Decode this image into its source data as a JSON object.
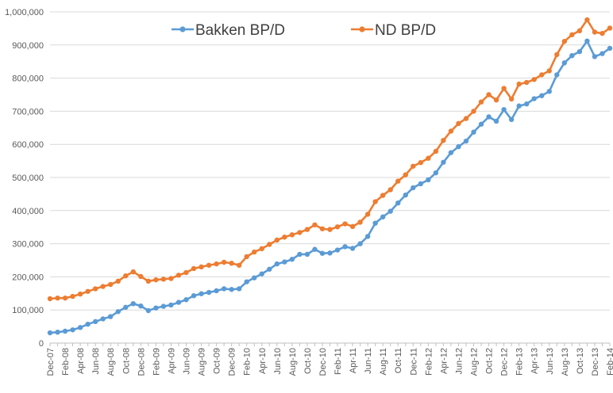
{
  "chart_data": {
    "type": "line",
    "title": "",
    "xlabel": "",
    "ylabel": "",
    "ylim": [
      0,
      1000000
    ],
    "y_ticks": [
      0,
      100000,
      200000,
      300000,
      400000,
      500000,
      600000,
      700000,
      800000,
      900000,
      1000000
    ],
    "y_tick_labels": [
      "0",
      "100,000",
      "200,000",
      "300,000",
      "400,000",
      "500,000",
      "600,000",
      "700,000",
      "800,000",
      "900,000",
      "1,000,000"
    ],
    "grid": true,
    "legend_position": "top",
    "x_tick_labels": [
      "Dec-07",
      "Feb-08",
      "Apr-08",
      "Jun-08",
      "Aug-08",
      "Oct-08",
      "Dec-08",
      "Feb-09",
      "Apr-09",
      "Jun-09",
      "Aug-09",
      "Oct-09",
      "Dec-09",
      "Feb-10",
      "Apr-10",
      "Jun-10",
      "Aug-10",
      "Oct-10",
      "Dec-10",
      "Feb-11",
      "Apr-11",
      "Jun-11",
      "Aug-11",
      "Oct-11",
      "Dec-11",
      "Feb-12",
      "Apr-12",
      "Jun-12",
      "Aug-12",
      "Oct-12",
      "Dec-12",
      "Feb-13",
      "Apr-13",
      "Jun-13",
      "Aug-13",
      "Oct-13",
      "Dec-13",
      "Feb-14"
    ],
    "x": [
      "Dec-07",
      "Jan-08",
      "Feb-08",
      "Mar-08",
      "Apr-08",
      "May-08",
      "Jun-08",
      "Jul-08",
      "Aug-08",
      "Sep-08",
      "Oct-08",
      "Nov-08",
      "Dec-08",
      "Jan-09",
      "Feb-09",
      "Mar-09",
      "Apr-09",
      "May-09",
      "Jun-09",
      "Jul-09",
      "Aug-09",
      "Sep-09",
      "Oct-09",
      "Nov-09",
      "Dec-09",
      "Jan-10",
      "Feb-10",
      "Mar-10",
      "Apr-10",
      "May-10",
      "Jun-10",
      "Jul-10",
      "Aug-10",
      "Sep-10",
      "Oct-10",
      "Nov-10",
      "Dec-10",
      "Jan-11",
      "Feb-11",
      "Mar-11",
      "Apr-11",
      "May-11",
      "Jun-11",
      "Jul-11",
      "Aug-11",
      "Sep-11",
      "Oct-11",
      "Nov-11",
      "Dec-11",
      "Jan-12",
      "Feb-12",
      "Mar-12",
      "Apr-12",
      "May-12",
      "Jun-12",
      "Jul-12",
      "Aug-12",
      "Sep-12",
      "Oct-12",
      "Nov-12",
      "Dec-12",
      "Jan-13",
      "Feb-13",
      "Mar-13",
      "Apr-13",
      "May-13",
      "Jun-13",
      "Jul-13",
      "Aug-13",
      "Sep-13",
      "Oct-13",
      "Nov-13",
      "Dec-13",
      "Jan-14",
      "Feb-14"
    ],
    "series": [
      {
        "name": "Bakken BP/D",
        "color": "#5B9BD5",
        "values": [
          31000,
          33000,
          36000,
          40000,
          47000,
          57000,
          65000,
          73000,
          80000,
          95000,
          108000,
          119000,
          112000,
          98000,
          106000,
          111000,
          115000,
          123000,
          131000,
          143000,
          149000,
          153000,
          158000,
          164000,
          162000,
          164000,
          185000,
          197000,
          209000,
          223000,
          239000,
          245000,
          253000,
          268000,
          268000,
          283000,
          271000,
          272000,
          281000,
          291000,
          286000,
          300000,
          322000,
          362000,
          381000,
          398000,
          423000,
          447000,
          469000,
          481000,
          493000,
          514000,
          546000,
          575000,
          593000,
          610000,
          637000,
          661000,
          683000,
          670000,
          705000,
          675000,
          716000,
          722000,
          738000,
          747000,
          760000,
          810000,
          846000,
          868000,
          880000,
          912000,
          865000,
          874000,
          890000
        ]
      },
      {
        "name": "ND BP/D",
        "color": "#ED7D31",
        "values": [
          134000,
          136000,
          136000,
          141000,
          148000,
          156000,
          164000,
          171000,
          177000,
          187000,
          203000,
          215000,
          201000,
          187000,
          191000,
          193000,
          195000,
          205000,
          213000,
          225000,
          230000,
          235000,
          239000,
          244000,
          241000,
          235000,
          261000,
          275000,
          285000,
          298000,
          311000,
          320000,
          327000,
          334000,
          343000,
          357000,
          345000,
          343000,
          351000,
          360000,
          352000,
          365000,
          389000,
          427000,
          446000,
          463000,
          489000,
          508000,
          534000,
          545000,
          558000,
          579000,
          612000,
          640000,
          663000,
          678000,
          700000,
          728000,
          750000,
          734000,
          769000,
          737000,
          782000,
          787000,
          796000,
          810000,
          822000,
          871000,
          911000,
          931000,
          943000,
          976000,
          939000,
          935000,
          951000
        ]
      }
    ]
  }
}
